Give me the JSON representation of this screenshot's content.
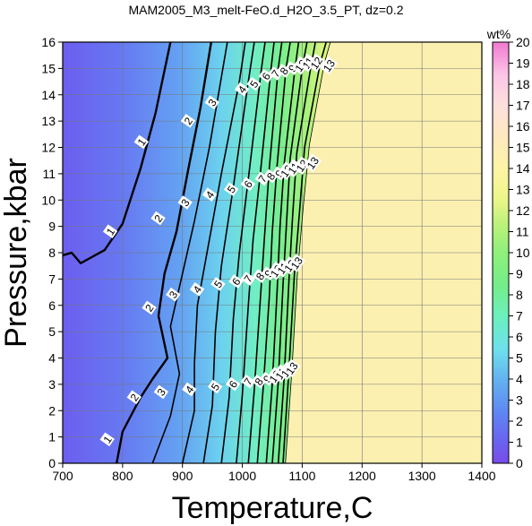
{
  "chart_data": {
    "type": "heatmap",
    "title": "MAM2005_M3_melt-FeO.d_H2O_3.5_PT, dz=0.2",
    "xlabel": "Temperature,C",
    "ylabel": "Pressure,kbar",
    "xlim": [
      700,
      1400
    ],
    "ylim": [
      0,
      16
    ],
    "xticks": [
      700,
      800,
      900,
      1000,
      1100,
      1200,
      1300,
      1400
    ],
    "yticks": [
      0,
      1,
      2,
      3,
      4,
      5,
      6,
      7,
      8,
      9,
      10,
      11,
      12,
      13,
      14,
      15,
      16
    ],
    "grid": true,
    "colorbar": {
      "label": "wt%",
      "min": 0,
      "max": 20,
      "ticks": [
        0,
        1,
        2,
        3,
        4,
        5,
        6,
        7,
        8,
        9,
        10,
        11,
        12,
        13,
        14,
        15,
        16,
        17,
        18,
        19,
        20
      ]
    },
    "saturation_fill_color": "#fbf0b0",
    "contour_levels": [
      1,
      2,
      3,
      4,
      5,
      6,
      7,
      8,
      9,
      10,
      11,
      12,
      13
    ],
    "contours": [
      {
        "level": 1,
        "points": [
          [
            700,
            7.9
          ],
          [
            715,
            8.0
          ],
          [
            730,
            7.6
          ],
          [
            770,
            8.1
          ],
          [
            800,
            9.1
          ],
          [
            830,
            11.2
          ],
          [
            855,
            13.3
          ],
          [
            880,
            16
          ]
        ]
      },
      {
        "level": 2,
        "points": [
          [
            790,
            0
          ],
          [
            800,
            1.2
          ],
          [
            830,
            2.5
          ],
          [
            850,
            3.2
          ],
          [
            875,
            4.0
          ],
          [
            860,
            5.6
          ],
          [
            870,
            7.2
          ],
          [
            890,
            8.8
          ],
          [
            910,
            11.2
          ],
          [
            930,
            13.5
          ],
          [
            948,
            16
          ]
        ]
      },
      {
        "level": 3,
        "points": [
          [
            850,
            0
          ],
          [
            880,
            1.8
          ],
          [
            895,
            3.4
          ],
          [
            880,
            5.2
          ],
          [
            900,
            7.2
          ],
          [
            920,
            9.2
          ],
          [
            945,
            12.0
          ],
          [
            975,
            16
          ]
        ]
      },
      {
        "level": 4,
        "points": [
          [
            900,
            0
          ],
          [
            920,
            2.0
          ],
          [
            920,
            3.8
          ],
          [
            925,
            6.0
          ],
          [
            945,
            8.5
          ],
          [
            965,
            11.0
          ],
          [
            995,
            14.5
          ],
          [
            1005,
            16
          ]
        ]
      },
      {
        "level": 5,
        "points": [
          [
            935,
            0
          ],
          [
            950,
            2.2
          ],
          [
            955,
            5.0
          ],
          [
            965,
            7.5
          ],
          [
            985,
            10.5
          ],
          [
            1010,
            14.5
          ],
          [
            1020,
            16
          ]
        ]
      },
      {
        "level": 6,
        "points": [
          [
            965,
            0
          ],
          [
            978,
            2.5
          ],
          [
            985,
            5.5
          ],
          [
            995,
            8.0
          ],
          [
            1010,
            10.8
          ],
          [
            1032,
            15.0
          ],
          [
            1038,
            16
          ]
        ]
      },
      {
        "level": 7,
        "points": [
          [
            990,
            0
          ],
          [
            1000,
            2.6
          ],
          [
            1010,
            6.0
          ],
          [
            1018,
            8.5
          ],
          [
            1030,
            11.0
          ],
          [
            1048,
            15.0
          ],
          [
            1053,
            16
          ]
        ]
      },
      {
        "level": 8,
        "points": [
          [
            1010,
            0
          ],
          [
            1020,
            2.8
          ],
          [
            1030,
            6.2
          ],
          [
            1037,
            8.6
          ],
          [
            1045,
            11.2
          ],
          [
            1060,
            15.0
          ],
          [
            1066,
            16
          ]
        ]
      },
      {
        "level": 9,
        "points": [
          [
            1025,
            0
          ],
          [
            1035,
            2.9
          ],
          [
            1045,
            6.3
          ],
          [
            1050,
            8.8
          ],
          [
            1058,
            11.3
          ],
          [
            1073,
            15.0
          ],
          [
            1080,
            16
          ]
        ]
      },
      {
        "level": 10,
        "points": [
          [
            1040,
            0
          ],
          [
            1050,
            3.0
          ],
          [
            1058,
            6.5
          ],
          [
            1063,
            9.0
          ],
          [
            1070,
            11.4
          ],
          [
            1088,
            15.0
          ],
          [
            1094,
            16
          ]
        ]
      },
      {
        "level": 11,
        "points": [
          [
            1050,
            0
          ],
          [
            1060,
            3.1
          ],
          [
            1068,
            6.8
          ],
          [
            1074,
            9.2
          ],
          [
            1080,
            11.6
          ],
          [
            1100,
            15.0
          ],
          [
            1108,
            16
          ]
        ]
      },
      {
        "level": 12,
        "points": [
          [
            1060,
            0
          ],
          [
            1070,
            3.3
          ],
          [
            1078,
            7.0
          ],
          [
            1084,
            9.4
          ],
          [
            1091,
            11.8
          ],
          [
            1114,
            15.0
          ],
          [
            1122,
            16
          ]
        ]
      },
      {
        "level": 13,
        "points": [
          [
            1068,
            0
          ],
          [
            1078,
            3.6
          ],
          [
            1087,
            7.2
          ],
          [
            1096,
            9.7
          ],
          [
            1104,
            12.0
          ],
          [
            1130,
            15.2
          ],
          [
            1140,
            16
          ]
        ]
      }
    ],
    "saturation_boundary": [
      [
        1072,
        0
      ],
      [
        1083,
        3.6
      ],
      [
        1092,
        7.2
      ],
      [
        1102,
        9.8
      ],
      [
        1112,
        12.1
      ],
      [
        1137,
        15.2
      ],
      [
        1147,
        16
      ]
    ],
    "contour_labels": [
      {
        "text": "1",
        "x": 832,
        "y": 12.2
      },
      {
        "text": "2",
        "x": 910,
        "y": 13.0
      },
      {
        "text": "3",
        "x": 950,
        "y": 13.7
      },
      {
        "text": "4",
        "x": 1000,
        "y": 14.2
      },
      {
        "text": "5",
        "x": 1020,
        "y": 14.4
      },
      {
        "text": "6",
        "x": 1040,
        "y": 14.7
      },
      {
        "text": "7",
        "x": 1056,
        "y": 14.8
      },
      {
        "text": "8",
        "x": 1070,
        "y": 14.9
      },
      {
        "text": "9",
        "x": 1084,
        "y": 15.0
      },
      {
        "text": "10",
        "x": 1098,
        "y": 15.1
      },
      {
        "text": "11",
        "x": 1110,
        "y": 15.2
      },
      {
        "text": "12",
        "x": 1124,
        "y": 15.2
      },
      {
        "text": "13",
        "x": 1145,
        "y": 15.1
      },
      {
        "text": "1",
        "x": 780,
        "y": 8.8
      },
      {
        "text": "2",
        "x": 860,
        "y": 9.3
      },
      {
        "text": "3",
        "x": 905,
        "y": 9.9
      },
      {
        "text": "4",
        "x": 946,
        "y": 10.2
      },
      {
        "text": "5",
        "x": 982,
        "y": 10.4
      },
      {
        "text": "6",
        "x": 1010,
        "y": 10.6
      },
      {
        "text": "7",
        "x": 1034,
        "y": 10.8
      },
      {
        "text": "8",
        "x": 1048,
        "y": 10.9
      },
      {
        "text": "9",
        "x": 1062,
        "y": 11.0
      },
      {
        "text": "10",
        "x": 1074,
        "y": 11.1
      },
      {
        "text": "11",
        "x": 1086,
        "y": 11.2
      },
      {
        "text": "12",
        "x": 1100,
        "y": 11.3
      },
      {
        "text": "13",
        "x": 1118,
        "y": 11.4
      },
      {
        "text": "2",
        "x": 845,
        "y": 5.9
      },
      {
        "text": "3",
        "x": 885,
        "y": 6.4
      },
      {
        "text": "4",
        "x": 925,
        "y": 6.6
      },
      {
        "text": "5",
        "x": 960,
        "y": 6.8
      },
      {
        "text": "6",
        "x": 990,
        "y": 6.9
      },
      {
        "text": "7",
        "x": 1010,
        "y": 7.0
      },
      {
        "text": "8",
        "x": 1030,
        "y": 7.1
      },
      {
        "text": "9",
        "x": 1044,
        "y": 7.2
      },
      {
        "text": "10",
        "x": 1057,
        "y": 7.3
      },
      {
        "text": "11",
        "x": 1068,
        "y": 7.4
      },
      {
        "text": "12",
        "x": 1080,
        "y": 7.5
      },
      {
        "text": "13",
        "x": 1091,
        "y": 7.6
      },
      {
        "text": "1",
        "x": 775,
        "y": 0.9
      },
      {
        "text": "2",
        "x": 820,
        "y": 2.5
      },
      {
        "text": "3",
        "x": 865,
        "y": 2.7
      },
      {
        "text": "4",
        "x": 912,
        "y": 2.8
      },
      {
        "text": "5",
        "x": 955,
        "y": 2.9
      },
      {
        "text": "6",
        "x": 985,
        "y": 3.0
      },
      {
        "text": "7",
        "x": 1010,
        "y": 3.1
      },
      {
        "text": "8",
        "x": 1028,
        "y": 3.1
      },
      {
        "text": "9",
        "x": 1042,
        "y": 3.2
      },
      {
        "text": "10",
        "x": 1055,
        "y": 3.3
      },
      {
        "text": "11",
        "x": 1065,
        "y": 3.4
      },
      {
        "text": "12",
        "x": 1075,
        "y": 3.5
      },
      {
        "text": "13",
        "x": 1083,
        "y": 3.6
      }
    ]
  }
}
